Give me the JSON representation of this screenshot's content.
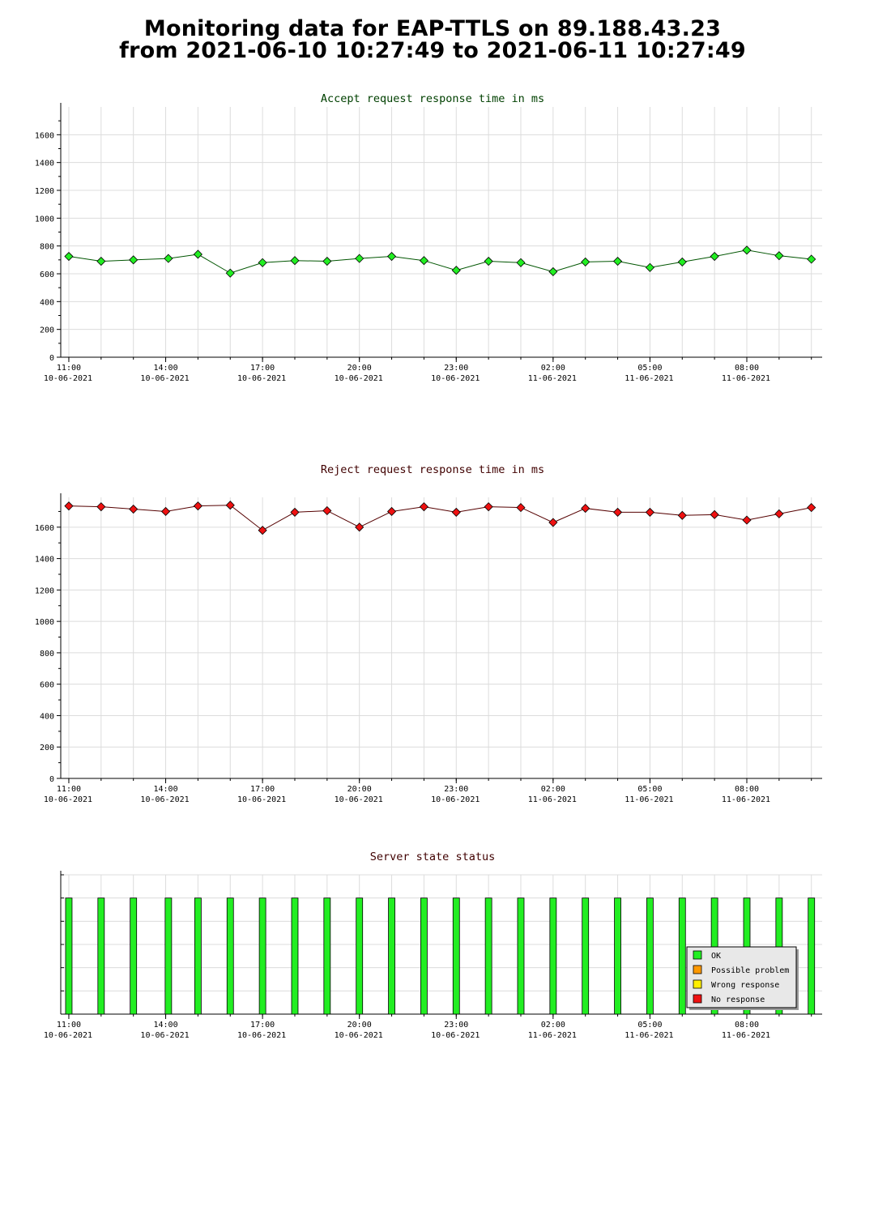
{
  "header": {
    "line1": "Monitoring data for EAP-TTLS on 89.188.43.23",
    "line2": "from 2021-06-10 10:27:49 to 2021-06-11 10:27:49"
  },
  "colors": {
    "accept_title": "#004000",
    "reject_title": "#400000",
    "status_title": "#400000",
    "accept_marker": "#22ee22",
    "accept_line": "#005500",
    "reject_marker": "#ee1111",
    "reject_line": "#550000",
    "ok": "#22ee22",
    "possible_problem": "#ff9900",
    "wrong_response": "#ffee00",
    "no_response": "#ee1111",
    "grid": "#dcdcdc",
    "legend_bg": "#e8e8e8"
  },
  "x_ticks": [
    {
      "time": "11:00",
      "date": "10-06-2021"
    },
    {
      "time": "14:00",
      "date": "10-06-2021"
    },
    {
      "time": "17:00",
      "date": "10-06-2021"
    },
    {
      "time": "20:00",
      "date": "10-06-2021"
    },
    {
      "time": "23:00",
      "date": "10-06-2021"
    },
    {
      "time": "02:00",
      "date": "11-06-2021"
    },
    {
      "time": "05:00",
      "date": "11-06-2021"
    },
    {
      "time": "08:00",
      "date": "11-06-2021"
    }
  ],
  "chart_data": [
    {
      "type": "line",
      "title": "Accept request response time in ms",
      "xlabel": "",
      "ylabel": "",
      "xlim": [
        "2021-06-10 10:45",
        "2021-06-11 10:20"
      ],
      "ylim": [
        0,
        1800
      ],
      "yticks": [
        0,
        200,
        400,
        600,
        800,
        1000,
        1200,
        1400,
        1600
      ],
      "grid": true,
      "x": [
        "2021-06-10 11:00",
        "2021-06-10 12:00",
        "2021-06-10 13:00",
        "2021-06-10 14:05",
        "2021-06-10 15:00",
        "2021-06-10 16:00",
        "2021-06-10 17:00",
        "2021-06-10 18:00",
        "2021-06-10 19:00",
        "2021-06-10 20:00",
        "2021-06-10 21:00",
        "2021-06-10 22:00",
        "2021-06-10 23:00",
        "2021-06-11 00:00",
        "2021-06-11 01:00",
        "2021-06-11 02:00",
        "2021-06-11 03:00",
        "2021-06-11 04:00",
        "2021-06-11 05:00",
        "2021-06-11 06:00",
        "2021-06-11 07:00",
        "2021-06-11 08:00",
        "2021-06-11 09:00",
        "2021-06-11 10:00"
      ],
      "values": [
        725,
        690,
        700,
        710,
        740,
        605,
        680,
        695,
        690,
        710,
        725,
        695,
        625,
        690,
        680,
        615,
        685,
        690,
        645,
        685,
        725,
        770,
        730,
        705
      ]
    },
    {
      "type": "line",
      "title": "Reject request response time in ms",
      "xlabel": "",
      "ylabel": "",
      "xlim": [
        "2021-06-10 10:45",
        "2021-06-11 10:20"
      ],
      "ylim": [
        0,
        1790
      ],
      "yticks": [
        0,
        200,
        400,
        600,
        800,
        1000,
        1200,
        1400,
        1600
      ],
      "grid": true,
      "x": [
        "2021-06-10 11:00",
        "2021-06-10 12:00",
        "2021-06-10 13:00",
        "2021-06-10 14:00",
        "2021-06-10 15:00",
        "2021-06-10 16:00",
        "2021-06-10 17:00",
        "2021-06-10 18:00",
        "2021-06-10 19:00",
        "2021-06-10 20:00",
        "2021-06-10 21:00",
        "2021-06-10 22:00",
        "2021-06-10 23:00",
        "2021-06-11 00:00",
        "2021-06-11 01:00",
        "2021-06-11 02:00",
        "2021-06-11 03:00",
        "2021-06-11 04:00",
        "2021-06-11 05:00",
        "2021-06-11 06:00",
        "2021-06-11 07:00",
        "2021-06-11 08:00",
        "2021-06-11 09:00",
        "2021-06-11 10:00"
      ],
      "values": [
        1735,
        1730,
        1715,
        1700,
        1735,
        1740,
        1580,
        1695,
        1705,
        1600,
        1700,
        1730,
        1695,
        1730,
        1725,
        1630,
        1720,
        1695,
        1695,
        1675,
        1680,
        1645,
        1685,
        1725
      ]
    },
    {
      "type": "bar",
      "title": "Server state status",
      "xlabel": "",
      "ylabel": "",
      "xlim": [
        "2021-06-10 10:45",
        "2021-06-11 10:20"
      ],
      "ylim": [
        0,
        1.2
      ],
      "grid": true,
      "legend": {
        "placement": "bottom-right",
        "entries": [
          {
            "label": "OK",
            "color": "#22ee22"
          },
          {
            "label": "Possible problem",
            "color": "#ff9900"
          },
          {
            "label": "Wrong response",
            "color": "#ffee00"
          },
          {
            "label": "No response",
            "color": "#ee1111"
          }
        ]
      },
      "x": [
        "2021-06-10 11:00",
        "2021-06-10 12:00",
        "2021-06-10 13:00",
        "2021-06-10 14:05",
        "2021-06-10 15:00",
        "2021-06-10 16:00",
        "2021-06-10 17:00",
        "2021-06-10 18:00",
        "2021-06-10 19:00",
        "2021-06-10 20:00",
        "2021-06-10 21:00",
        "2021-06-10 22:00",
        "2021-06-10 23:00",
        "2021-06-11 00:00",
        "2021-06-11 01:00",
        "2021-06-11 02:00",
        "2021-06-11 03:00",
        "2021-06-11 04:00",
        "2021-06-11 05:00",
        "2021-06-11 06:00",
        "2021-06-11 07:00",
        "2021-06-11 08:00",
        "2021-06-11 09:00",
        "2021-06-11 10:00"
      ],
      "series": [
        {
          "status": "OK",
          "values": [
            1,
            1,
            1,
            1,
            1,
            1,
            1,
            1,
            1,
            1,
            1,
            1,
            1,
            1,
            1,
            1,
            1,
            1,
            1,
            1,
            1,
            1,
            1,
            1
          ]
        }
      ]
    }
  ]
}
